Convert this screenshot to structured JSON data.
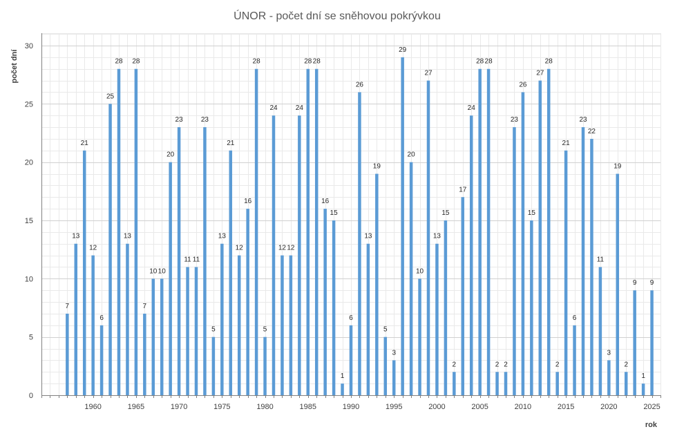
{
  "chart_data": {
    "type": "bar",
    "title": "ÚNOR - počet dní se sněhovou pokrývkou",
    "xlabel": "rok",
    "ylabel": "počet dní",
    "ylim": [
      0,
      30
    ],
    "yticks": [
      0,
      5,
      10,
      15,
      20,
      25,
      30
    ],
    "xticks": [
      1960,
      1965,
      1970,
      1975,
      1980,
      1985,
      1990,
      1995,
      2000,
      2005,
      2010,
      2015,
      2020,
      2025
    ],
    "xlim": [
      1954,
      2026
    ],
    "grid": true,
    "bar_color": "#5b9bd5",
    "categories": [
      1957,
      1958,
      1959,
      1960,
      1961,
      1962,
      1963,
      1964,
      1965,
      1966,
      1967,
      1968,
      1969,
      1970,
      1971,
      1972,
      1973,
      1974,
      1975,
      1976,
      1977,
      1978,
      1979,
      1980,
      1981,
      1982,
      1983,
      1984,
      1985,
      1986,
      1987,
      1988,
      1989,
      1990,
      1991,
      1992,
      1993,
      1994,
      1995,
      1996,
      1997,
      1998,
      1999,
      2000,
      2001,
      2002,
      2003,
      2004,
      2005,
      2006,
      2007,
      2008,
      2009,
      2010,
      2011,
      2012,
      2013,
      2014,
      2015,
      2016,
      2017,
      2018,
      2019,
      2020,
      2021,
      2022,
      2023,
      2024,
      2025
    ],
    "values": [
      7,
      13,
      21,
      12,
      6,
      25,
      28,
      13,
      28,
      7,
      10,
      10,
      20,
      23,
      11,
      11,
      23,
      5,
      13,
      21,
      12,
      16,
      28,
      5,
      24,
      12,
      12,
      24,
      28,
      28,
      16,
      15,
      1,
      6,
      26,
      13,
      19,
      5,
      3,
      29,
      20,
      10,
      27,
      13,
      15,
      2,
      17,
      24,
      28,
      28,
      2,
      2,
      23,
      26,
      15,
      27,
      28,
      2,
      21,
      6,
      23,
      22,
      11,
      3,
      19,
      2,
      9,
      1,
      9
    ]
  }
}
